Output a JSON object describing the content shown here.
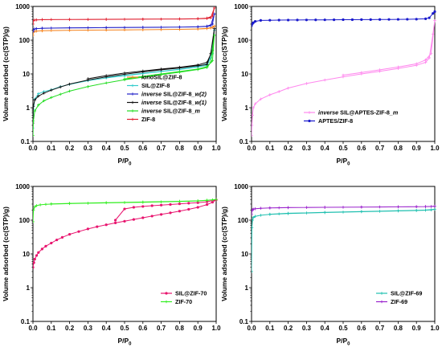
{
  "chart_data": [
    {
      "type": "line",
      "xlabel": "P/P0",
      "ylabel": "Volume adsorbed (cc(STP)/g)",
      "xlim": [
        0.0,
        1.0
      ],
      "ylim": [
        0.1,
        1000
      ],
      "yscale": "log",
      "xticks": [
        "0.0",
        "0.1",
        "0.2",
        "0.3",
        "0.4",
        "0.5",
        "0.6",
        "0.7",
        "0.8",
        "0.9",
        "1.0"
      ],
      "yticks": [
        "0.1",
        "1",
        "10",
        "100",
        "1000"
      ],
      "legend_position": "bottom-right",
      "series": [
        {
          "name": "ionoSIL@ZIF-8",
          "label_parts": [
            {
              "t": "iono",
              "i": true
            },
            {
              "t": "SIL@ZIF-8",
              "i": false
            }
          ],
          "color": "#f5841f",
          "marker": "+",
          "x": [
            0.0,
            0.003,
            0.01,
            0.02,
            0.05,
            0.1,
            0.2,
            0.3,
            0.4,
            0.5,
            0.6,
            0.7,
            0.8,
            0.9,
            0.95,
            0.97,
            0.99,
            0.98,
            0.95,
            0.9,
            0.8,
            0.6,
            0.4,
            0.2,
            0.05
          ],
          "y": [
            140,
            175,
            182,
            186,
            190,
            193,
            196,
            198,
            200,
            202,
            204,
            206,
            210,
            214,
            220,
            230,
            260,
            240,
            225,
            215,
            210,
            204,
            200,
            196,
            190
          ]
        },
        {
          "name": "SIL@ZIF-8",
          "label_parts": [
            {
              "t": "SIL@ZIF-8",
              "i": false
            }
          ],
          "color": "#33cccc",
          "marker": "+",
          "x": [
            0.0,
            0.002,
            0.01,
            0.03,
            0.06,
            0.1,
            0.15,
            0.2,
            0.3,
            0.4,
            0.5,
            0.6,
            0.7,
            0.8,
            0.9,
            0.95,
            0.97,
            0.99,
            0.98,
            0.95,
            0.9,
            0.8,
            0.7,
            0.6,
            0.5,
            0.4
          ],
          "y": [
            0.25,
            0.9,
            1.8,
            2.6,
            3.0,
            3.4,
            4.2,
            4.9,
            6.3,
            7.6,
            8.8,
            10.2,
            11.8,
            13.5,
            16,
            18,
            30,
            200,
            40,
            20,
            16.5,
            13.8,
            12,
            10.4,
            9,
            7.8
          ]
        },
        {
          "name": "inverse SIL@ZIF-8_w(2)",
          "label_parts": [
            {
              "t": "inverse",
              "i": true
            },
            {
              "t": " SIL@ZIF-8",
              "i": false
            },
            {
              "t": "_w(2)",
              "i": true
            }
          ],
          "color": "#2020c8",
          "marker": "+",
          "x": [
            0.0,
            0.003,
            0.01,
            0.02,
            0.05,
            0.1,
            0.2,
            0.3,
            0.4,
            0.5,
            0.6,
            0.7,
            0.8,
            0.9,
            0.95,
            0.97,
            0.99,
            0.98,
            0.95,
            0.9,
            0.8,
            0.6,
            0.4,
            0.2,
            0.05
          ],
          "y": [
            180,
            205,
            215,
            220,
            225,
            228,
            231,
            233,
            235,
            237,
            239,
            241,
            244,
            248,
            255,
            270,
            600,
            300,
            260,
            250,
            245,
            240,
            236,
            232,
            226
          ]
        },
        {
          "name": "inverse SIL@ZIF-8_w(1)",
          "label_parts": [
            {
              "t": "inverse",
              "i": true
            },
            {
              "t": " SIL@ZIF-8",
              "i": false
            },
            {
              "t": "_w(1)",
              "i": true
            }
          ],
          "color": "#111111",
          "marker": "+",
          "x": [
            0.0,
            0.002,
            0.01,
            0.03,
            0.06,
            0.1,
            0.15,
            0.2,
            0.3,
            0.4,
            0.5,
            0.6,
            0.7,
            0.8,
            0.9,
            0.95,
            0.97,
            0.99,
            0.98,
            0.95,
            0.9,
            0.8,
            0.7,
            0.6,
            0.5,
            0.4,
            0.3
          ],
          "y": [
            0.35,
            1.1,
            1.7,
            2.2,
            2.7,
            3.3,
            4.1,
            5.0,
            6.6,
            8.2,
            9.8,
            11.5,
            13.2,
            15,
            17.5,
            19,
            40,
            220,
            50,
            22,
            18.5,
            15.8,
            14,
            12.2,
            10.6,
            8.9,
            7.2
          ]
        },
        {
          "name": "inverse SIL@ZIF-8_m",
          "label_parts": [
            {
              "t": "inverse",
              "i": true
            },
            {
              "t": " SIL@ZIF-8",
              "i": false
            },
            {
              "t": "_m",
              "i": true
            }
          ],
          "color": "#22dd22",
          "marker": "+",
          "x": [
            0.0,
            0.002,
            0.01,
            0.03,
            0.06,
            0.1,
            0.15,
            0.2,
            0.3,
            0.4,
            0.5,
            0.6,
            0.7,
            0.8,
            0.9,
            0.95,
            0.97,
            0.99,
            0.98,
            0.95,
            0.9,
            0.8,
            0.7,
            0.6,
            0.5
          ],
          "y": [
            0.15,
            0.4,
            0.8,
            1.2,
            1.6,
            2.0,
            2.5,
            3.1,
            4.2,
            5.4,
            6.7,
            8.0,
            9.5,
            11.2,
            13.5,
            15.5,
            22,
            140,
            25,
            16.5,
            14,
            11.8,
            10,
            8.5,
            7.1
          ]
        },
        {
          "name": "ZIF-8",
          "label_parts": [
            {
              "t": "ZIF-8",
              "i": false
            }
          ],
          "color": "#e02030",
          "marker": "+",
          "x": [
            0.0,
            0.003,
            0.01,
            0.02,
            0.05,
            0.1,
            0.2,
            0.3,
            0.4,
            0.5,
            0.6,
            0.7,
            0.8,
            0.9,
            0.95,
            0.97,
            0.99,
            0.98,
            0.95,
            0.9,
            0.8,
            0.6,
            0.4,
            0.2,
            0.05
          ],
          "y": [
            300,
            380,
            395,
            400,
            405,
            408,
            410,
            412,
            414,
            416,
            418,
            420,
            424,
            430,
            440,
            460,
            900,
            520,
            450,
            435,
            426,
            420,
            415,
            411,
            406
          ]
        }
      ]
    },
    {
      "type": "line",
      "xlabel": "P/P0",
      "ylabel": "Volume adsorbed (cc(STP)/g)",
      "xlim": [
        0.0,
        1.0
      ],
      "ylim": [
        0.1,
        1000
      ],
      "yscale": "log",
      "xticks": [
        "0.0",
        "0.1",
        "0.2",
        "0.3",
        "0.4",
        "0.5",
        "0.6",
        "0.7",
        "0.8",
        "0.9",
        "1.0"
      ],
      "yticks": [
        "0.1",
        "1",
        "10",
        "100",
        "1000"
      ],
      "legend_position": "bottom-right",
      "series": [
        {
          "name": "inverse SIL@APTES-ZIF-8_m",
          "label_parts": [
            {
              "t": "inverse",
              "i": true
            },
            {
              "t": " SIL@APTES-ZIF-8",
              "i": false
            },
            {
              "t": "_m",
              "i": true
            }
          ],
          "color": "#ff88ee",
          "marker": "+",
          "x": [
            0.0,
            0.002,
            0.005,
            0.01,
            0.02,
            0.05,
            0.1,
            0.15,
            0.2,
            0.3,
            0.4,
            0.5,
            0.6,
            0.7,
            0.8,
            0.9,
            0.95,
            0.97,
            0.99,
            1.0,
            0.98,
            0.95,
            0.9,
            0.8,
            0.7,
            0.6,
            0.5
          ],
          "y": [
            0.15,
            0.3,
            0.6,
            1.0,
            1.3,
            1.8,
            2.4,
            3.0,
            3.8,
            5.2,
            6.6,
            8.2,
            10,
            12,
            14.5,
            18,
            22,
            30,
            150,
            380,
            40,
            26,
            20,
            16,
            13.2,
            11,
            9.2
          ]
        },
        {
          "name": "APTES/ZIF-8",
          "label_parts": [
            {
              "t": "APTES/ZIF-8",
              "i": false
            }
          ],
          "color": "#1a1acc",
          "marker": "o",
          "x": [
            0.0,
            0.005,
            0.01,
            0.02,
            0.05,
            0.1,
            0.15,
            0.2,
            0.25,
            0.3,
            0.35,
            0.4,
            0.45,
            0.5,
            0.55,
            0.6,
            0.65,
            0.7,
            0.75,
            0.8,
            0.85,
            0.9,
            0.95,
            0.97,
            0.99,
            1.0
          ],
          "y": [
            270,
            310,
            330,
            360,
            385,
            390,
            393,
            395,
            397,
            398,
            400,
            401,
            402,
            404,
            405,
            407,
            408,
            410,
            412,
            414,
            417,
            420,
            430,
            460,
            620,
            700
          ]
        }
      ]
    },
    {
      "type": "line",
      "xlabel": "P/P0",
      "ylabel": "Volume adsorbed (cc(STP)/g)",
      "xlim": [
        0.0,
        1.0
      ],
      "ylim": [
        0.1,
        1000
      ],
      "yscale": "log",
      "xticks": [
        "0.0",
        "0.1",
        "0.2",
        "0.3",
        "0.4",
        "0.5",
        "0.6",
        "0.7",
        "0.8",
        "0.9",
        "1.0"
      ],
      "yticks": [
        "0.1",
        "1",
        "10",
        "100",
        "1000"
      ],
      "legend_position": "bottom-right",
      "series": [
        {
          "name": "SIL@ZIF-70",
          "label_parts": [
            {
              "t": "SIL@ZIF-70",
              "i": false
            }
          ],
          "color": "#e8146e",
          "marker": "o",
          "x": [
            0.0,
            0.005,
            0.01,
            0.02,
            0.03,
            0.05,
            0.07,
            0.1,
            0.13,
            0.16,
            0.2,
            0.25,
            0.3,
            0.35,
            0.4,
            0.45,
            0.5,
            0.55,
            0.6,
            0.65,
            0.7,
            0.75,
            0.8,
            0.85,
            0.9,
            0.95,
            0.98,
            1.0,
            0.95,
            0.9,
            0.85,
            0.8,
            0.75,
            0.7,
            0.65,
            0.6,
            0.55,
            0.5,
            0.45
          ],
          "y": [
            4,
            5.5,
            7,
            9,
            11,
            14,
            17,
            21,
            26,
            31,
            38,
            46,
            55,
            64,
            73,
            83,
            93,
            105,
            118,
            132,
            148,
            165,
            185,
            210,
            240,
            290,
            340,
            400,
            350,
            330,
            318,
            305,
            292,
            280,
            268,
            255,
            240,
            215,
            100
          ]
        },
        {
          "name": "ZIF-70",
          "label_parts": [
            {
              "t": "ZIF-70",
              "i": false
            }
          ],
          "color": "#33ee22",
          "marker": "+",
          "x": [
            0.0,
            0.003,
            0.01,
            0.02,
            0.04,
            0.07,
            0.1,
            0.2,
            0.3,
            0.4,
            0.5,
            0.6,
            0.7,
            0.8,
            0.9,
            0.95,
            0.98,
            1.0,
            0.95,
            0.9,
            0.8,
            0.6,
            0.4,
            0.2,
            0.1
          ],
          "y": [
            90,
            200,
            250,
            270,
            285,
            295,
            300,
            310,
            318,
            325,
            332,
            340,
            348,
            358,
            370,
            385,
            400,
            410,
            390,
            375,
            362,
            345,
            330,
            315,
            305
          ]
        }
      ]
    },
    {
      "type": "line",
      "xlabel": "P/P0",
      "ylabel": "Volume adsorbed (cc(STP)/g)",
      "xlim": [
        0.0,
        1.0
      ],
      "ylim": [
        0.1,
        1000
      ],
      "yscale": "log",
      "xticks": [
        "0.0",
        "0.1",
        "0.2",
        "0.3",
        "0.4",
        "0.5",
        "0.6",
        "0.7",
        "0.8",
        "0.9",
        "1.0"
      ],
      "yticks": [
        "0.1",
        "1",
        "10",
        "100",
        "1000"
      ],
      "legend_position": "bottom-right",
      "series": [
        {
          "name": "SIL@ZIF-69",
          "label_parts": [
            {
              "t": "SIL@ZIF-69",
              "i": false
            }
          ],
          "color": "#20c0b0",
          "marker": "+",
          "x": [
            0.0,
            0.002,
            0.005,
            0.01,
            0.02,
            0.05,
            0.1,
            0.15,
            0.2,
            0.3,
            0.4,
            0.5,
            0.6,
            0.7,
            0.8,
            0.9,
            0.95,
            0.98,
            1.0,
            0.95,
            0.9,
            0.8,
            0.6,
            0.4,
            0.2,
            0.1
          ],
          "y": [
            3,
            60,
            100,
            120,
            130,
            140,
            148,
            153,
            157,
            163,
            168,
            173,
            178,
            183,
            188,
            193,
            197,
            202,
            210,
            200,
            195,
            190,
            180,
            170,
            160,
            150
          ]
        },
        {
          "name": "ZIF-69",
          "label_parts": [
            {
              "t": "ZIF-69",
              "i": false
            }
          ],
          "color": "#9a22cc",
          "marker": "+",
          "x": [
            0.0,
            0.002,
            0.005,
            0.01,
            0.02,
            0.05,
            0.1,
            0.15,
            0.2,
            0.3,
            0.4,
            0.5,
            0.6,
            0.7,
            0.8,
            0.9,
            0.95,
            0.98,
            1.0,
            0.95,
            0.9,
            0.8,
            0.6,
            0.4,
            0.2,
            0.1
          ],
          "y": [
            150,
            190,
            205,
            212,
            218,
            225,
            230,
            233,
            235,
            238,
            240,
            242,
            244,
            246,
            248,
            250,
            252,
            254,
            258,
            253,
            251,
            249,
            245,
            241,
            236,
            231
          ]
        }
      ]
    }
  ]
}
